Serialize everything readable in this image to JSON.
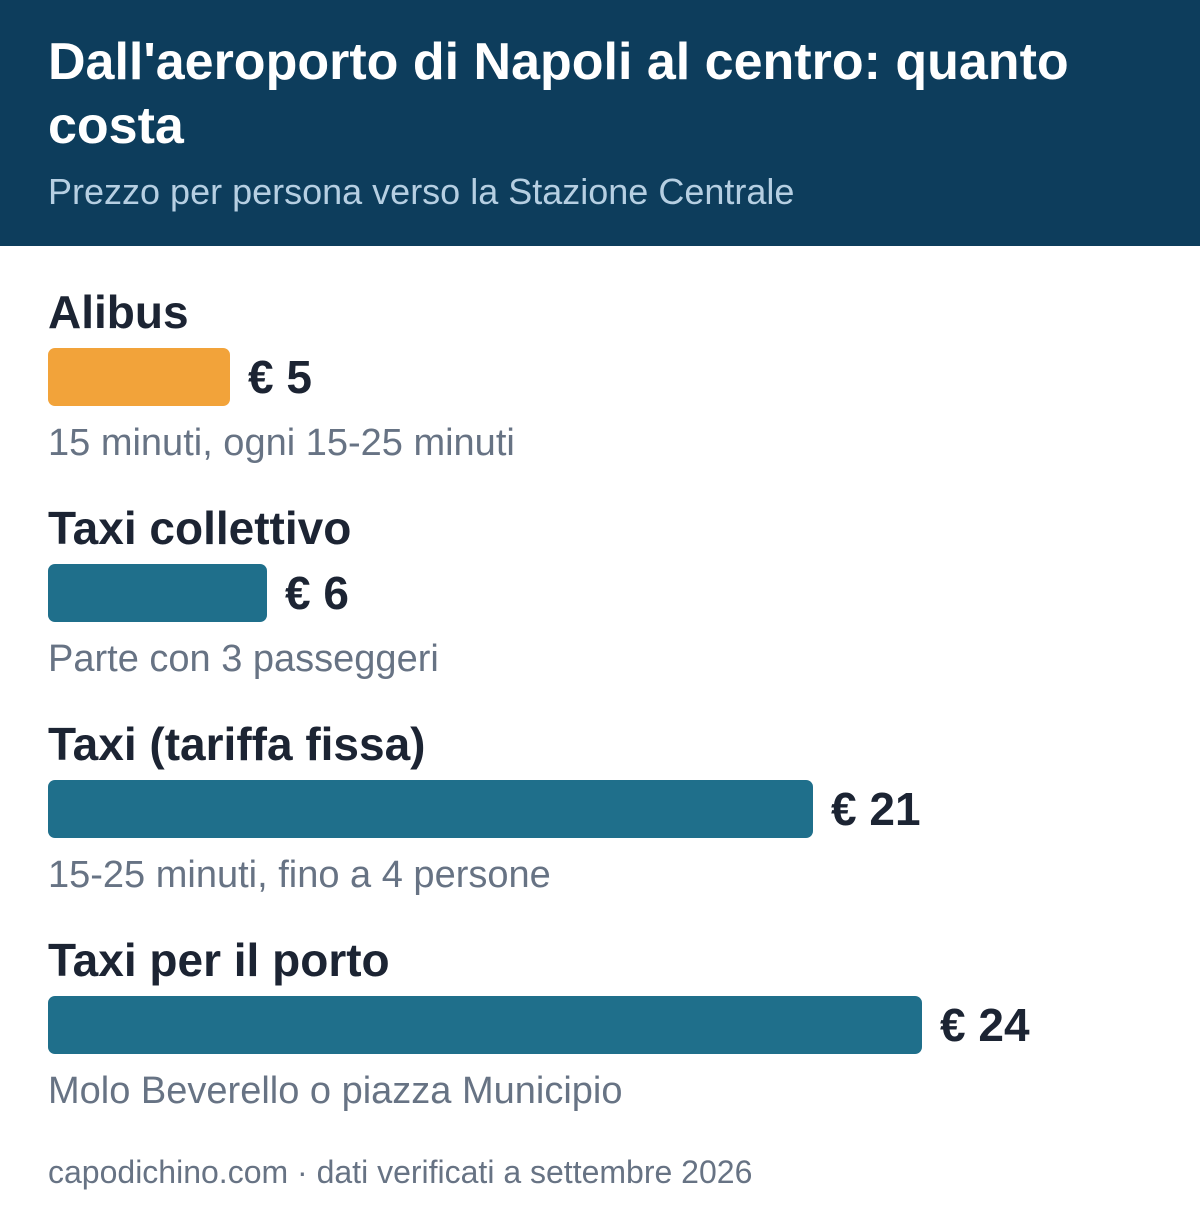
{
  "header": {
    "title": "Dall'aeroporto di Napoli al centro: quanto costa",
    "subtitle": "Prezzo per persona verso la Stazione Centrale"
  },
  "colors": {
    "header_background": "#0d3d5c",
    "highlight_bar": "#f2a33a",
    "bar": "#1f6f8b",
    "label_text": "#1c2433",
    "note_text": "#677384"
  },
  "chart_data": {
    "type": "bar",
    "orientation": "horizontal",
    "title": "Dall'aeroporto di Napoli al centro: quanto costa",
    "subtitle": "Prezzo per persona verso la Stazione Centrale",
    "categories": [
      "Alibus",
      "Taxi collettivo",
      "Taxi (tariffa fissa)",
      "Taxi per il porto"
    ],
    "values": [
      5,
      6,
      21,
      24
    ],
    "value_labels": [
      "€ 5",
      "€ 6",
      "€ 21",
      "€ 24"
    ],
    "notes": [
      "15 minuti, ogni 15-25 minuti",
      "Parte con 3 passeggeri",
      "15-25 minuti, fino a 4 persone",
      "Molo Beverello o piazza Municipio"
    ],
    "bar_colors": [
      "#f2a33a",
      "#1f6f8b",
      "#1f6f8b",
      "#1f6f8b"
    ],
    "xlim": [
      0,
      24
    ],
    "grid": false,
    "legend": false
  },
  "footer": {
    "source": "capodichino.com · dati verificati a settembre 2026"
  }
}
